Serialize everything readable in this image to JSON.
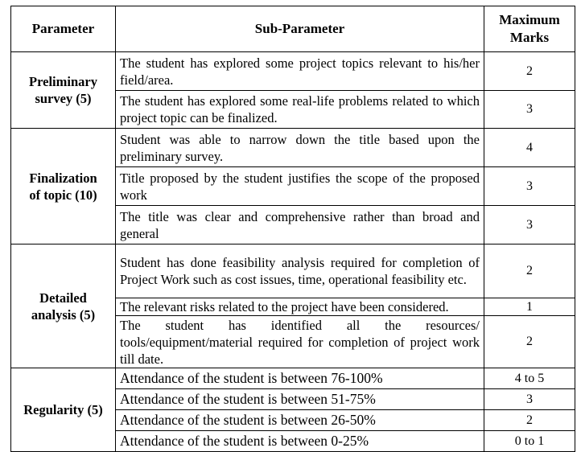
{
  "headers": {
    "parameter": "Parameter",
    "sub_parameter": "Sub-Parameter",
    "max_marks_line1": "Maximum",
    "max_marks_line2": "Marks"
  },
  "groups": [
    {
      "parameter_line1": "Preliminary",
      "parameter_line2": "survey (5)",
      "rows": [
        {
          "text": "The student has explored some project topics relevant to his/her field/area.",
          "marks": "2"
        },
        {
          "text": "The student has explored some real-life problems related to which project topic can be finalized.",
          "marks": "3"
        }
      ]
    },
    {
      "parameter_line1": "Finalization",
      "parameter_line2": "of topic (10)",
      "rows": [
        {
          "text": "Student was able to narrow down the title based upon the preliminary survey.",
          "marks": "4"
        },
        {
          "text": "Title proposed by the student justifies the scope of the proposed work",
          "marks": "3"
        },
        {
          "text": "The title was clear and comprehensive rather than broad and general",
          "marks": "3"
        }
      ]
    },
    {
      "parameter_line1": "Detailed",
      "parameter_line2": "analysis (5)",
      "rows": [
        {
          "text": "Student has done feasibility analysis required for completion of Project Work such as cost issues, time, operational feasibility etc.",
          "marks": "2"
        },
        {
          "text": "The relevant risks related to the project have been considered.",
          "marks": "1"
        },
        {
          "text": "The student has identified all the resources/ tools/equipment/material required for completion of project work till date.",
          "marks": "2"
        }
      ]
    },
    {
      "parameter_line1": "Regularity (5)",
      "rows": [
        {
          "text": "Attendance of the student is between 76-100%",
          "marks": "4 to 5"
        },
        {
          "text": "Attendance of the student is between 51-75%",
          "marks": "3"
        },
        {
          "text": "Attendance of the student is between 26-50%",
          "marks": "2"
        },
        {
          "text": "Attendance of the student is between 0-25%",
          "marks": "0 to 1"
        }
      ]
    }
  ]
}
